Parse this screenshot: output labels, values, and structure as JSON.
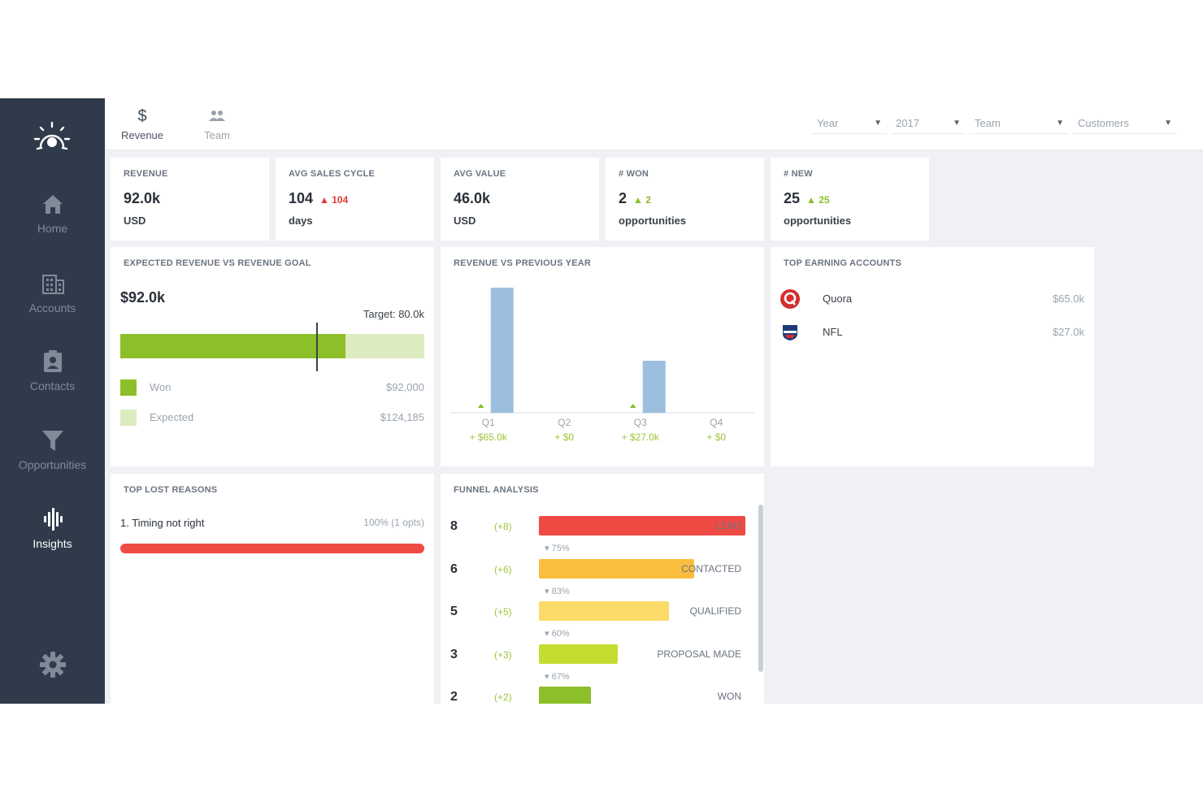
{
  "sidebar": {
    "items": [
      {
        "label": "Home",
        "icon": "home-icon"
      },
      {
        "label": "Accounts",
        "icon": "building-icon"
      },
      {
        "label": "Contacts",
        "icon": "contact-card-icon"
      },
      {
        "label": "Opportunities",
        "icon": "funnel-icon"
      },
      {
        "label": "Insights",
        "icon": "insights-icon"
      }
    ],
    "active": "Insights",
    "settings_icon": "gear-icon"
  },
  "tabs": [
    {
      "label": "Revenue",
      "icon_glyph": "$"
    },
    {
      "label": "Team",
      "icon_glyph": "👥"
    }
  ],
  "filters": [
    {
      "label": "Year"
    },
    {
      "label": "2017"
    },
    {
      "label": "Team"
    },
    {
      "label": "Customers"
    }
  ],
  "kpis": [
    {
      "title": "REVENUE",
      "value": "92.0k",
      "delta": "",
      "unit": "USD"
    },
    {
      "title": "AVG SALES CYCLE",
      "value": "104",
      "delta": "▲ 104",
      "unit": "days"
    },
    {
      "title": "AVG VALUE",
      "value": "46.0k",
      "delta": "",
      "unit": "USD"
    },
    {
      "title": "# WON",
      "value": "2",
      "delta": "▲ 2",
      "unit": "opportunities"
    },
    {
      "title": "# NEW",
      "value": "25",
      "delta": "▲ 25",
      "unit": "opportunities"
    }
  ],
  "expected": {
    "title": "EXPECTED REVENUE VS REVENUE GOAL",
    "amount": "$92.0k",
    "target_label": "Target: 80.0k",
    "won_value": 92000,
    "expected_value": 124185,
    "target_value": 80000,
    "legend": [
      {
        "name": "Won",
        "value": "$92,000",
        "color": "#8cbf2a"
      },
      {
        "name": "Expected",
        "value": "$124,185",
        "color": "#dcebc0"
      }
    ]
  },
  "revenue_chart": {
    "title": "REVENUE VS PREVIOUS YEAR",
    "bar_color": "#9cbfe0",
    "marker_color": "#8cbf2a"
  },
  "chart_data": {
    "type": "bar",
    "categories": [
      "Q1",
      "Q2",
      "Q3",
      "Q4"
    ],
    "values": [
      65000,
      0,
      27000,
      0
    ],
    "change_labels": [
      "+ $65.0k",
      "+ $0",
      "+ $27.0k",
      "+ $0"
    ],
    "title": "REVENUE VS PREVIOUS YEAR",
    "xlabel": "",
    "ylabel": "",
    "ylim": [
      0,
      65000
    ],
    "grid": false,
    "legend": "none"
  },
  "top_accounts": {
    "title": "TOP EARNING ACCOUNTS",
    "items": [
      {
        "name": "Quora",
        "value": "$65.0k",
        "icon": "quora-logo-icon"
      },
      {
        "name": "NFL",
        "value": "$27.0k",
        "icon": "nfl-logo-icon"
      }
    ]
  },
  "lost_reasons": {
    "title": "TOP LOST REASONS",
    "items": [
      {
        "label": "1. Timing not right",
        "value": "100% (1 opts)",
        "fraction": 1.0,
        "color": "#f04a45"
      }
    ]
  },
  "funnel": {
    "title": "FUNNEL ANALYSIS",
    "stages": [
      {
        "count": "8",
        "delta": "(+8)",
        "name": "LEAD",
        "fraction": 1.0,
        "color": "#f04a45"
      },
      {
        "count": "6",
        "delta": "(+6)",
        "name": "CONTACTED",
        "fraction": 0.75,
        "color": "#fbbd3e"
      },
      {
        "count": "5",
        "delta": "(+5)",
        "name": "QUALIFIED",
        "fraction": 0.63,
        "color": "#fcdb6a"
      },
      {
        "count": "3",
        "delta": "(+3)",
        "name": "PROPOSAL MADE",
        "fraction": 0.38,
        "color": "#c5dc30"
      },
      {
        "count": "2",
        "delta": "(+2)",
        "name": "WON",
        "fraction": 0.25,
        "color": "#8cbf2a"
      }
    ],
    "conversions": [
      "▾ 75%",
      "▾ 83%",
      "▾ 60%",
      "▾ 67%"
    ]
  }
}
